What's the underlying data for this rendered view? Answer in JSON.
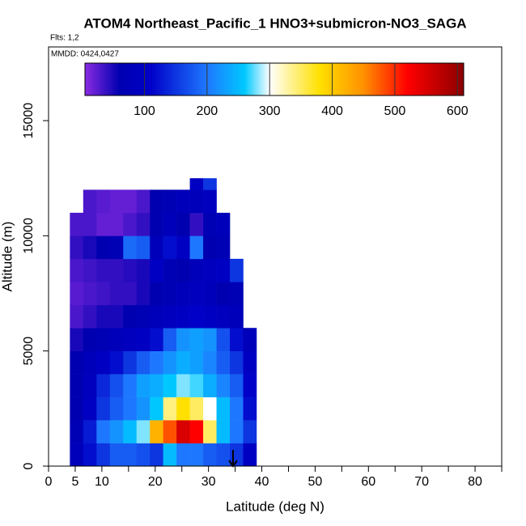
{
  "chart_data": {
    "type": "heatmap",
    "title": "ATOM4 Northeast_Pacific_1 HNO3+submicron-NO3_SAGA",
    "subtitle": "Flts: 1,2",
    "annotation": "MMDD: 0424,0427",
    "xlabel": "Latitude (deg N)",
    "ylabel": "Altitude (m)",
    "xlim": [
      0,
      85
    ],
    "ylim": [
      0,
      18200
    ],
    "xticks": [
      0,
      5,
      10,
      20,
      30,
      40,
      50,
      60,
      70,
      80
    ],
    "xminorticks": [
      15,
      25,
      35,
      45,
      55,
      65,
      75,
      85
    ],
    "yticks": [
      0,
      5000,
      10000,
      15000
    ],
    "clim": [
      5,
      610
    ],
    "cticks": [
      100,
      200,
      300,
      400,
      500,
      600
    ],
    "colormap": [
      [
        5,
        "#8a2be2"
      ],
      [
        60,
        "#0000b0"
      ],
      [
        110,
        "#0000c8"
      ],
      [
        200,
        "#1e78ff"
      ],
      [
        260,
        "#00c8ff"
      ],
      [
        300,
        "#ffffff"
      ],
      [
        380,
        "#ffe000"
      ],
      [
        450,
        "#ff9000"
      ],
      [
        520,
        "#ff0000"
      ],
      [
        610,
        "#8b0000"
      ]
    ],
    "x_edges": [
      4,
      6.5,
      9,
      11.5,
      14,
      16.5,
      19,
      21.5,
      24,
      26.5,
      29,
      31.5,
      34,
      36.5,
      39
    ],
    "y_edges": [
      0,
      1000,
      2000,
      3000,
      4000,
      5000,
      6000,
      7000,
      8000,
      9000,
      10000,
      11000,
      12000,
      12500
    ],
    "z": [
      [
        80,
        120,
        150,
        180,
        180,
        170,
        150,
        250,
        200,
        200,
        180,
        170,
        150,
        100
      ],
      [
        70,
        130,
        200,
        220,
        250,
        280,
        420,
        480,
        550,
        520,
        350,
        250,
        200,
        150
      ],
      [
        60,
        100,
        150,
        180,
        200,
        220,
        260,
        340,
        380,
        350,
        300,
        250,
        200,
        120
      ],
      [
        60,
        90,
        140,
        170,
        200,
        230,
        240,
        260,
        280,
        270,
        240,
        210,
        180,
        110
      ],
      [
        60,
        80,
        100,
        120,
        150,
        180,
        200,
        220,
        240,
        230,
        210,
        180,
        150,
        100
      ],
      [
        50,
        60,
        70,
        80,
        90,
        100,
        120,
        180,
        220,
        230,
        220,
        170,
        120,
        80
      ],
      [
        30,
        40,
        50,
        50,
        60,
        70,
        80,
        90,
        100,
        110,
        100,
        90,
        80,
        null
      ],
      [
        25,
        30,
        35,
        40,
        40,
        50,
        60,
        70,
        80,
        90,
        80,
        60,
        70,
        null
      ],
      [
        30,
        35,
        40,
        40,
        45,
        50,
        100,
        70,
        60,
        80,
        90,
        100,
        150,
        null
      ],
      [
        40,
        50,
        60,
        70,
        190,
        180,
        80,
        120,
        100,
        200,
        60,
        70,
        null,
        null
      ],
      [
        30,
        30,
        20,
        20,
        30,
        40,
        60,
        80,
        60,
        40,
        70,
        80,
        null,
        null
      ],
      [
        null,
        30,
        25,
        20,
        20,
        30,
        60,
        70,
        80,
        80,
        90,
        null,
        null,
        null
      ],
      [
        null,
        null,
        null,
        null,
        null,
        null,
        null,
        null,
        null,
        100,
        150,
        null,
        null,
        null
      ]
    ]
  }
}
